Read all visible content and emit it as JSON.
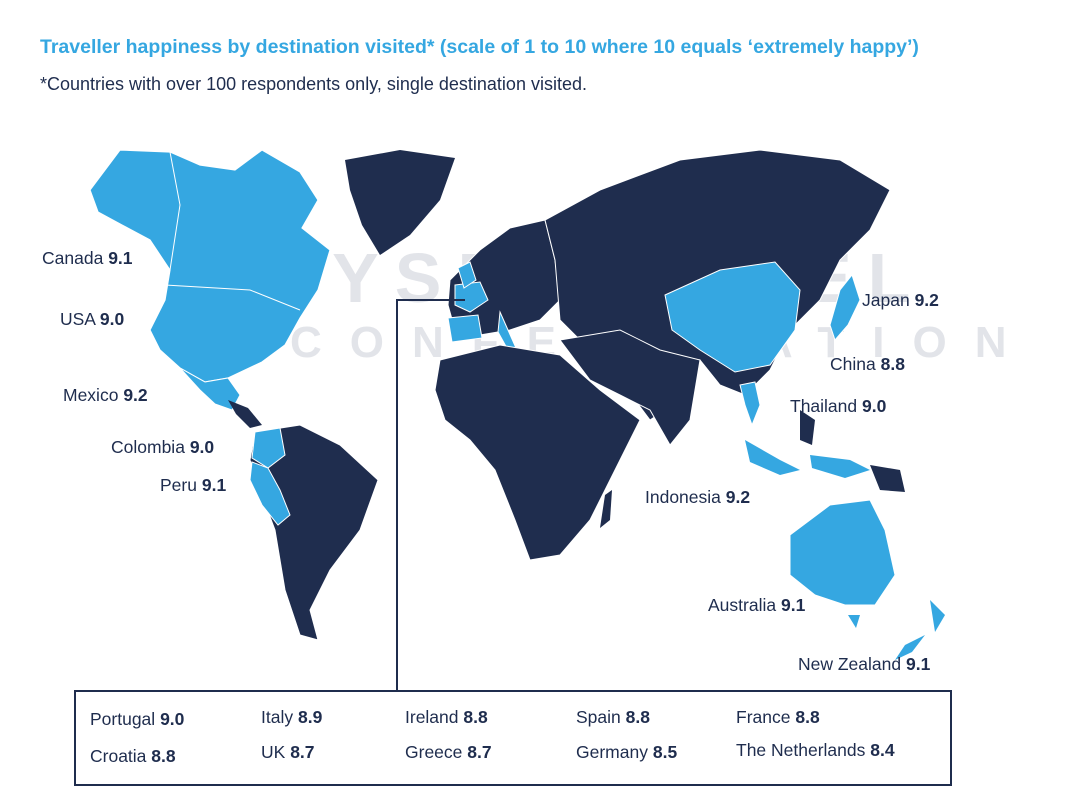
{
  "title": "Traveller happiness by destination visited* (scale of 1 to 10 where 10 equals ‘extremely happy’)",
  "subtitle": "*Countries with over 100 respondents only, single destination visited.",
  "watermark": {
    "line1": "WYSE TRAVEL",
    "line2": "CONFEDERATION"
  },
  "colors": {
    "highlight": "#35a7e1",
    "land": "#1f2d4e",
    "title": "#35a7e1",
    "text": "#1f2d4e"
  },
  "map_labels": [
    {
      "country": "Canada",
      "score": "9.1"
    },
    {
      "country": "USA",
      "score": "9.0"
    },
    {
      "country": "Mexico",
      "score": "9.2"
    },
    {
      "country": "Colombia",
      "score": "9.0"
    },
    {
      "country": "Peru",
      "score": "9.1"
    },
    {
      "country": "Japan",
      "score": "9.2"
    },
    {
      "country": "China",
      "score": "8.8"
    },
    {
      "country": "Thailand",
      "score": "9.0"
    },
    {
      "country": "Indonesia",
      "score": "9.2"
    },
    {
      "country": "Australia",
      "score": "9.1"
    },
    {
      "country": "New Zealand",
      "score": "9.1"
    }
  ],
  "europe_box": [
    {
      "country": "Portugal",
      "score": "9.0"
    },
    {
      "country": "Italy",
      "score": "8.9"
    },
    {
      "country": "Ireland",
      "score": "8.8"
    },
    {
      "country": "Spain",
      "score": "8.8"
    },
    {
      "country": "France",
      "score": "8.8"
    },
    {
      "country": "Croatia",
      "score": "8.8"
    },
    {
      "country": "UK",
      "score": "8.7"
    },
    {
      "country": "Greece",
      "score": "8.7"
    },
    {
      "country": "Germany",
      "score": "8.5"
    },
    {
      "country": "The Netherlands",
      "score": "8.4"
    }
  ]
}
